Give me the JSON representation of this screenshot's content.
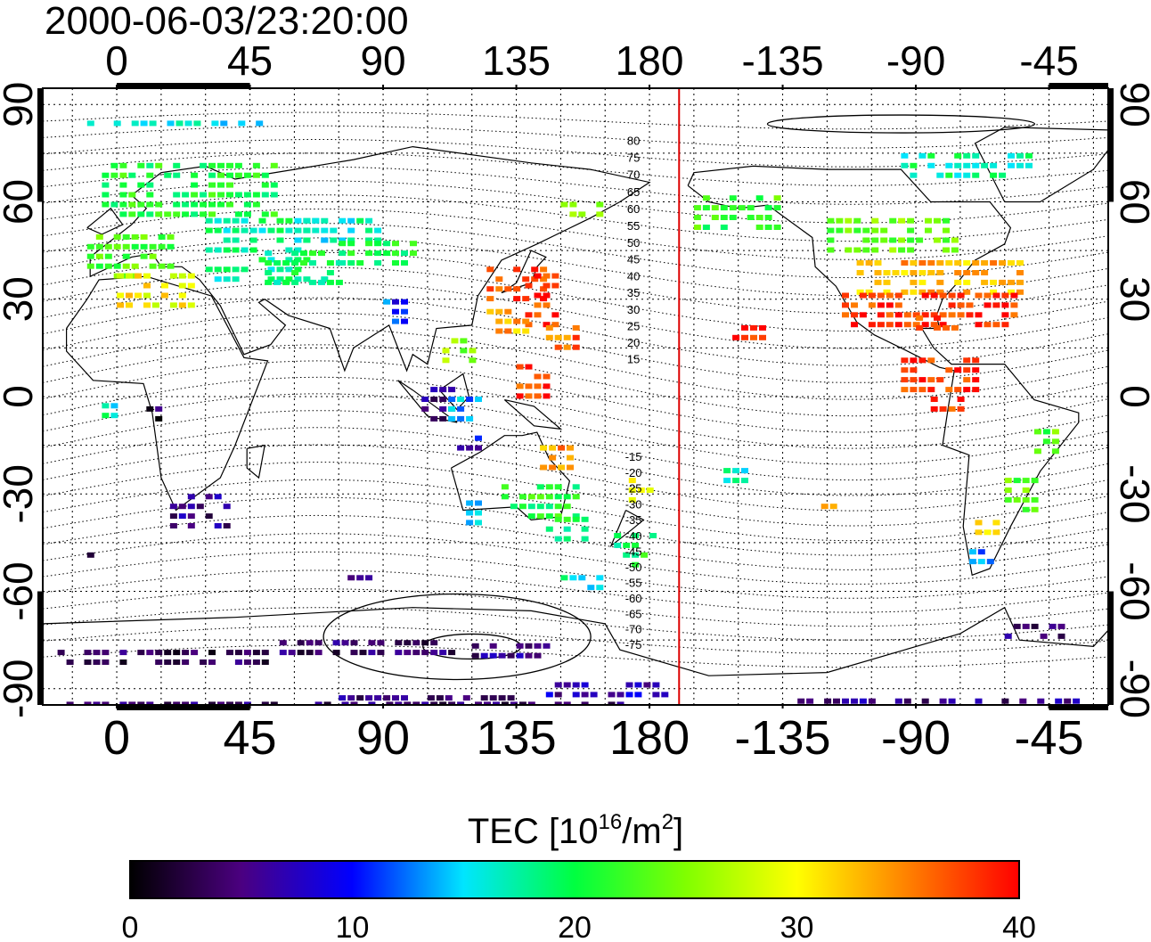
{
  "timestamp": "2000-06-03/23:20:00",
  "lon_ticks": [
    {
      "label": "0",
      "lon": 0
    },
    {
      "label": "45",
      "lon": 45
    },
    {
      "label": "90",
      "lon": 90
    },
    {
      "label": "135",
      "lon": 135
    },
    {
      "label": "180",
      "lon": 180
    },
    {
      "label": "-135",
      "lon": 225
    },
    {
      "label": "-90",
      "lon": 270
    },
    {
      "label": "-45",
      "lon": 315
    }
  ],
  "lat_ticks": [
    {
      "label": "90",
      "lat": 90
    },
    {
      "label": "60",
      "lat": 60
    },
    {
      "label": "30",
      "lat": 30
    },
    {
      "label": "0",
      "lat": 0
    },
    {
      "label": "-30",
      "lat": -30
    },
    {
      "label": "-60",
      "lat": -60
    },
    {
      "label": "-90",
      "lat": -90
    }
  ],
  "map_extent": {
    "lon_min": -25,
    "lon_max": 335,
    "lat_min": -95,
    "lat_max": 95
  },
  "meridian_marker": {
    "lon": 190,
    "color": "#dd0000"
  },
  "contour_labels": [
    "80",
    "75",
    "70",
    "65",
    "60",
    "55",
    "50",
    "45",
    "40",
    "35",
    "30",
    "25",
    "20",
    "15",
    "-15",
    "-20",
    "-25",
    "-30",
    "-35",
    "-40",
    "-45",
    "-50",
    "-55",
    "-60",
    "-65",
    "-70",
    "-75"
  ],
  "colorbar": {
    "title_prefix": "TEC  [10",
    "title_sup1": "16",
    "title_mid": "/m",
    "title_sup2": "2",
    "title_suffix": "]",
    "min": 0,
    "max": 40,
    "tick_labels": [
      "0",
      "10",
      "20",
      "30",
      "40"
    ],
    "stops": [
      {
        "v": 0,
        "color": "#000000"
      },
      {
        "v": 5,
        "color": "#4b0080"
      },
      {
        "v": 10,
        "color": "#0000ff"
      },
      {
        "v": 15,
        "color": "#00e5ff"
      },
      {
        "v": 20,
        "color": "#00ff40"
      },
      {
        "v": 25,
        "color": "#80ff00"
      },
      {
        "v": 30,
        "color": "#ffff00"
      },
      {
        "v": 35,
        "color": "#ff8000"
      },
      {
        "v": 40,
        "color": "#ff0000"
      }
    ]
  },
  "tec_patches": [
    {
      "lon": -10,
      "lat": 85,
      "w": 40,
      "h": 3,
      "tec": 16
    },
    {
      "lon": 20,
      "lat": 85,
      "w": 30,
      "h": 3,
      "tec": 15
    },
    {
      "lon": -5,
      "lat": 72,
      "w": 60,
      "h": 18,
      "tec": 21
    },
    {
      "lon": -10,
      "lat": 50,
      "w": 30,
      "h": 15,
      "tec": 23
    },
    {
      "lon": 0,
      "lat": 38,
      "w": 25,
      "h": 10,
      "tec": 30
    },
    {
      "lon": 30,
      "lat": 55,
      "w": 40,
      "h": 20,
      "tec": 18
    },
    {
      "lon": 50,
      "lat": 45,
      "w": 25,
      "h": 10,
      "tec": 19
    },
    {
      "lon": 60,
      "lat": 55,
      "w": 30,
      "h": 8,
      "tec": 17
    },
    {
      "lon": 75,
      "lat": 48,
      "w": 25,
      "h": 8,
      "tec": 20
    },
    {
      "lon": 90,
      "lat": 30,
      "w": 8,
      "h": 10,
      "tec": 11
    },
    {
      "lon": 125,
      "lat": 40,
      "w": 20,
      "h": 12,
      "tec": 37
    },
    {
      "lon": 138,
      "lat": 38,
      "w": 10,
      "h": 18,
      "tec": 38
    },
    {
      "lon": 125,
      "lat": 27,
      "w": 15,
      "h": 8,
      "tec": 33
    },
    {
      "lon": 145,
      "lat": 22,
      "w": 10,
      "h": 8,
      "tec": 36
    },
    {
      "lon": 110,
      "lat": 18,
      "w": 10,
      "h": 8,
      "tec": 25
    },
    {
      "lon": 150,
      "lat": 60,
      "w": 15,
      "h": 6,
      "tec": 24
    },
    {
      "lon": 135,
      "lat": 10,
      "w": 12,
      "h": 10,
      "tec": 38
    },
    {
      "lon": 103,
      "lat": 3,
      "w": 12,
      "h": 10,
      "tec": 5
    },
    {
      "lon": 112,
      "lat": 0,
      "w": 10,
      "h": 8,
      "tec": 14
    },
    {
      "lon": 115,
      "lat": -12,
      "w": 8,
      "h": 6,
      "tec": 8
    },
    {
      "lon": 140,
      "lat": -15,
      "w": 15,
      "h": 8,
      "tec": 34
    },
    {
      "lon": 130,
      "lat": -27,
      "w": 25,
      "h": 10,
      "tec": 21
    },
    {
      "lon": 115,
      "lat": -32,
      "w": 8,
      "h": 8,
      "tec": 13
    },
    {
      "lon": 145,
      "lat": -37,
      "w": 15,
      "h": 8,
      "tec": 20
    },
    {
      "lon": 168,
      "lat": -42,
      "w": 15,
      "h": 10,
      "tec": 20
    },
    {
      "lon": 170,
      "lat": -25,
      "w": 10,
      "h": 8,
      "tec": 28
    },
    {
      "lon": 150,
      "lat": -55,
      "w": 15,
      "h": 6,
      "tec": 17
    },
    {
      "lon": 208,
      "lat": 22,
      "w": 12,
      "h": 5,
      "tec": 39
    },
    {
      "lon": 195,
      "lat": 62,
      "w": 30,
      "h": 12,
      "tec": 22
    },
    {
      "lon": 240,
      "lat": 55,
      "w": 45,
      "h": 10,
      "tec": 24
    },
    {
      "lon": 250,
      "lat": 42,
      "w": 55,
      "h": 12,
      "tec": 33
    },
    {
      "lon": 245,
      "lat": 32,
      "w": 60,
      "h": 10,
      "tec": 38
    },
    {
      "lon": 270,
      "lat": 25,
      "w": 15,
      "h": 6,
      "tec": 38
    },
    {
      "lon": 265,
      "lat": 12,
      "w": 25,
      "h": 10,
      "tec": 38
    },
    {
      "lon": 275,
      "lat": 0,
      "w": 12,
      "h": 6,
      "tec": 38
    },
    {
      "lon": 265,
      "lat": 75,
      "w": 45,
      "h": 8,
      "tec": 18
    },
    {
      "lon": 310,
      "lat": -10,
      "w": 8,
      "h": 8,
      "tec": 23
    },
    {
      "lon": 300,
      "lat": -25,
      "w": 12,
      "h": 12,
      "tec": 24
    },
    {
      "lon": 290,
      "lat": -35,
      "w": 8,
      "h": 8,
      "tec": 30
    },
    {
      "lon": 288,
      "lat": -47,
      "w": 8,
      "h": 6,
      "tec": 12
    },
    {
      "lon": 238,
      "lat": -33,
      "w": 4,
      "h": 2,
      "tec": 34
    },
    {
      "lon": 205,
      "lat": -22,
      "w": 8,
      "h": 5,
      "tec": 17
    },
    {
      "lon": 18,
      "lat": -30,
      "w": 20,
      "h": 10,
      "tec": 5
    },
    {
      "lon": -5,
      "lat": -2,
      "w": 6,
      "h": 4,
      "tec": 17
    },
    {
      "lon": 10,
      "lat": -3,
      "w": 6,
      "h": 4,
      "tec": 3
    },
    {
      "lon": -10,
      "lat": -48,
      "w": 6,
      "h": 3,
      "tec": 4
    },
    {
      "lon": 75,
      "lat": -55,
      "w": 10,
      "h": 3,
      "tec": 4
    },
    {
      "lon": -20,
      "lat": -78,
      "w": 70,
      "h": 5,
      "tec": 3
    },
    {
      "lon": 55,
      "lat": -75,
      "w": 60,
      "h": 5,
      "tec": 4
    },
    {
      "lon": 120,
      "lat": -76,
      "w": 25,
      "h": 4,
      "tec": 5
    },
    {
      "lon": 145,
      "lat": -88,
      "w": 40,
      "h": 4,
      "tec": 7
    },
    {
      "lon": -20,
      "lat": -94,
      "w": 190,
      "h": 2,
      "tec": 4
    },
    {
      "lon": 75,
      "lat": -92,
      "w": 60,
      "h": 3,
      "tec": 5
    },
    {
      "lon": 230,
      "lat": -93,
      "w": 95,
      "h": 2,
      "tec": 5
    },
    {
      "lon": 300,
      "lat": -70,
      "w": 20,
      "h": 6,
      "tec": 4
    }
  ]
}
